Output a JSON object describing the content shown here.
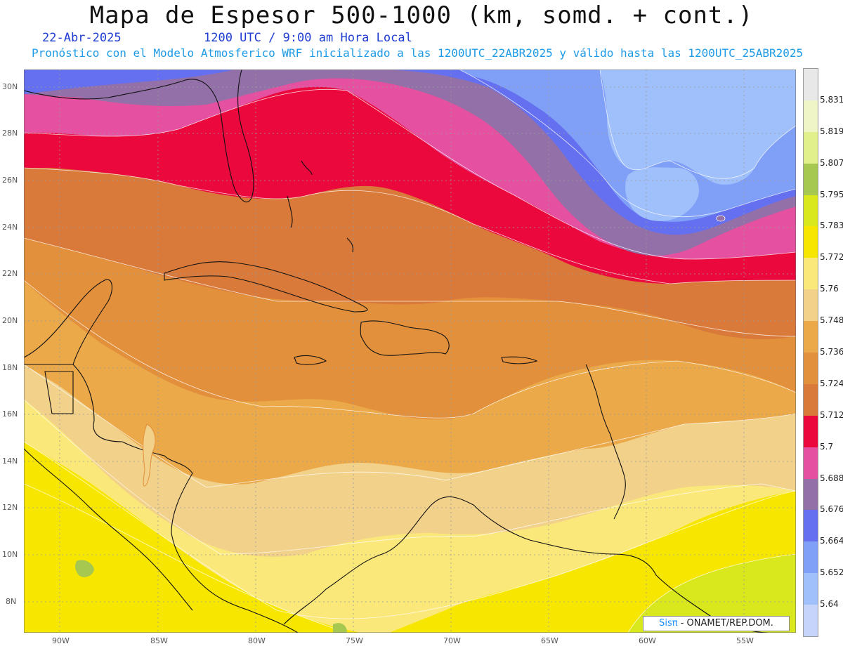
{
  "header": {
    "title": "Mapa de Espesor 500-1000 (km, somd. + cont.)",
    "date": "22-Abr-2025",
    "time": "1200 UTC / 9:00 am Hora Local",
    "forecast": "Pronóstico con el Modelo Atmosferico WRF inicializado a las 1200UTC_22ABR2025 y válido hasta las  1200UTC_25ABR2025"
  },
  "lat_ticks": [
    "30N",
    "28N",
    "26N",
    "24N",
    "22N",
    "20N",
    "18N",
    "16N",
    "14N",
    "12N",
    "10N",
    "8N"
  ],
  "lon_ticks": [
    "90W",
    "85W",
    "80W",
    "75W",
    "70W",
    "65W",
    "60W",
    "55W"
  ],
  "legend": {
    "levels": [
      "5.831",
      "5.819",
      "5.807",
      "5.795",
      "5.783",
      "5.772",
      "5.76",
      "5.748",
      "5.736",
      "5.724",
      "5.712",
      "5.7",
      "5.688",
      "5.676",
      "5.664",
      "5.652",
      "5.64"
    ],
    "colors": [
      "#e8e8e8",
      "#f0f5c8",
      "#e2f08c",
      "#a6c850",
      "#d8e81c",
      "#f7e600",
      "#fbe87a",
      "#f2d18a",
      "#eba94a",
      "#e3903c",
      "#d97a3a",
      "#ea083c",
      "#e550a0",
      "#9470a8",
      "#6470f0",
      "#80a0f8",
      "#a0c0fc",
      "#c6d4fc"
    ]
  },
  "credit": {
    "brand": "SisPI",
    "text": " - ONAMET/REP.DOM."
  }
}
